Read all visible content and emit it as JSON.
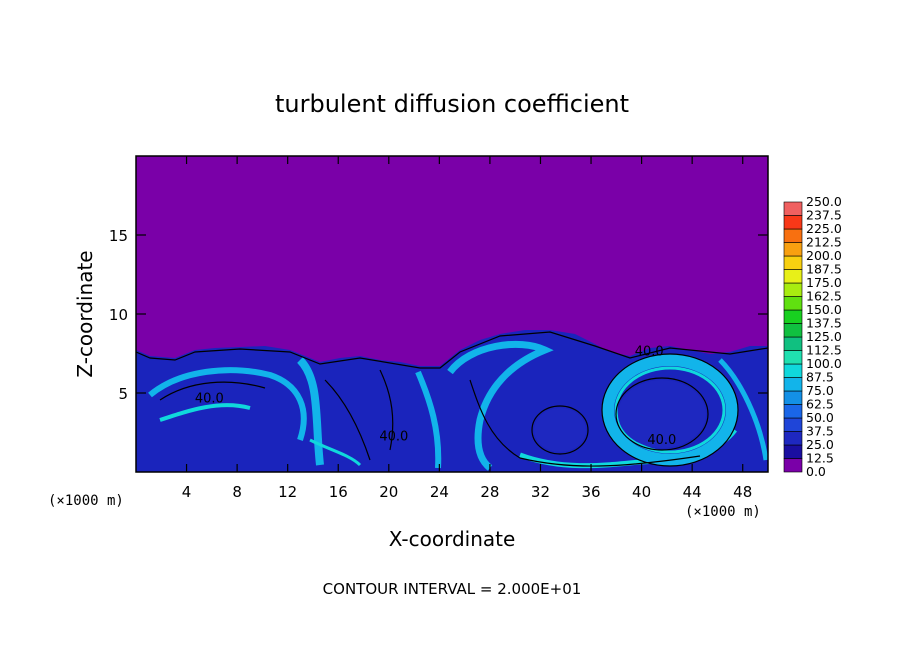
{
  "chart_data": {
    "type": "heatmap",
    "title": "turbulent diffusion coefficient",
    "xlabel": "X-coordinate",
    "ylabel": "Z-coordinate",
    "x_unit_left": "(×1000 m)",
    "x_unit_right": "(×1000 m)",
    "footer": "CONTOUR INTERVAL = 2.000E+01",
    "xlim": [
      0,
      50
    ],
    "ylim": [
      0,
      20
    ],
    "x_ticks": [
      4,
      8,
      12,
      16,
      20,
      24,
      28,
      32,
      36,
      40,
      44,
      48
    ],
    "y_ticks": [
      5,
      10,
      15
    ],
    "colorbar": {
      "levels": [
        "0.0",
        "12.5",
        "25.0",
        "37.5",
        "50.0",
        "62.5",
        "75.0",
        "87.5",
        "100.0",
        "112.5",
        "125.0",
        "137.5",
        "150.0",
        "162.5",
        "175.0",
        "187.5",
        "200.0",
        "212.5",
        "225.0",
        "237.5",
        "250.0"
      ],
      "colors": [
        "#7a00a8",
        "#1a0ea0",
        "#1e28c0",
        "#1f45d8",
        "#1a66e8",
        "#1390e6",
        "#12b4ea",
        "#10d8dc",
        "#20e0b0",
        "#10c080",
        "#10c040",
        "#18d020",
        "#60e010",
        "#a8ec10",
        "#e8f018",
        "#f8d010",
        "#f8a010",
        "#f87010",
        "#f83818",
        "#f06060"
      ]
    },
    "contour_labels": [
      {
        "text": "40.0",
        "x": 5.8,
        "z": 4.7
      },
      {
        "text": "40.0",
        "x": 20.4,
        "z": 2.3
      },
      {
        "text": "40.0",
        "x": 40.6,
        "z": 7.7
      },
      {
        "text": "40.0",
        "x": 41.6,
        "z": 2.1
      }
    ],
    "regions": [
      {
        "value": 0.0,
        "description_zone": "z > ~8 (upper domain)"
      },
      {
        "value": 37.5,
        "description_zone": "boundary layer 0–8"
      },
      {
        "value": 75.0,
        "description_zone": "eddy edges / filaments"
      }
    ]
  }
}
